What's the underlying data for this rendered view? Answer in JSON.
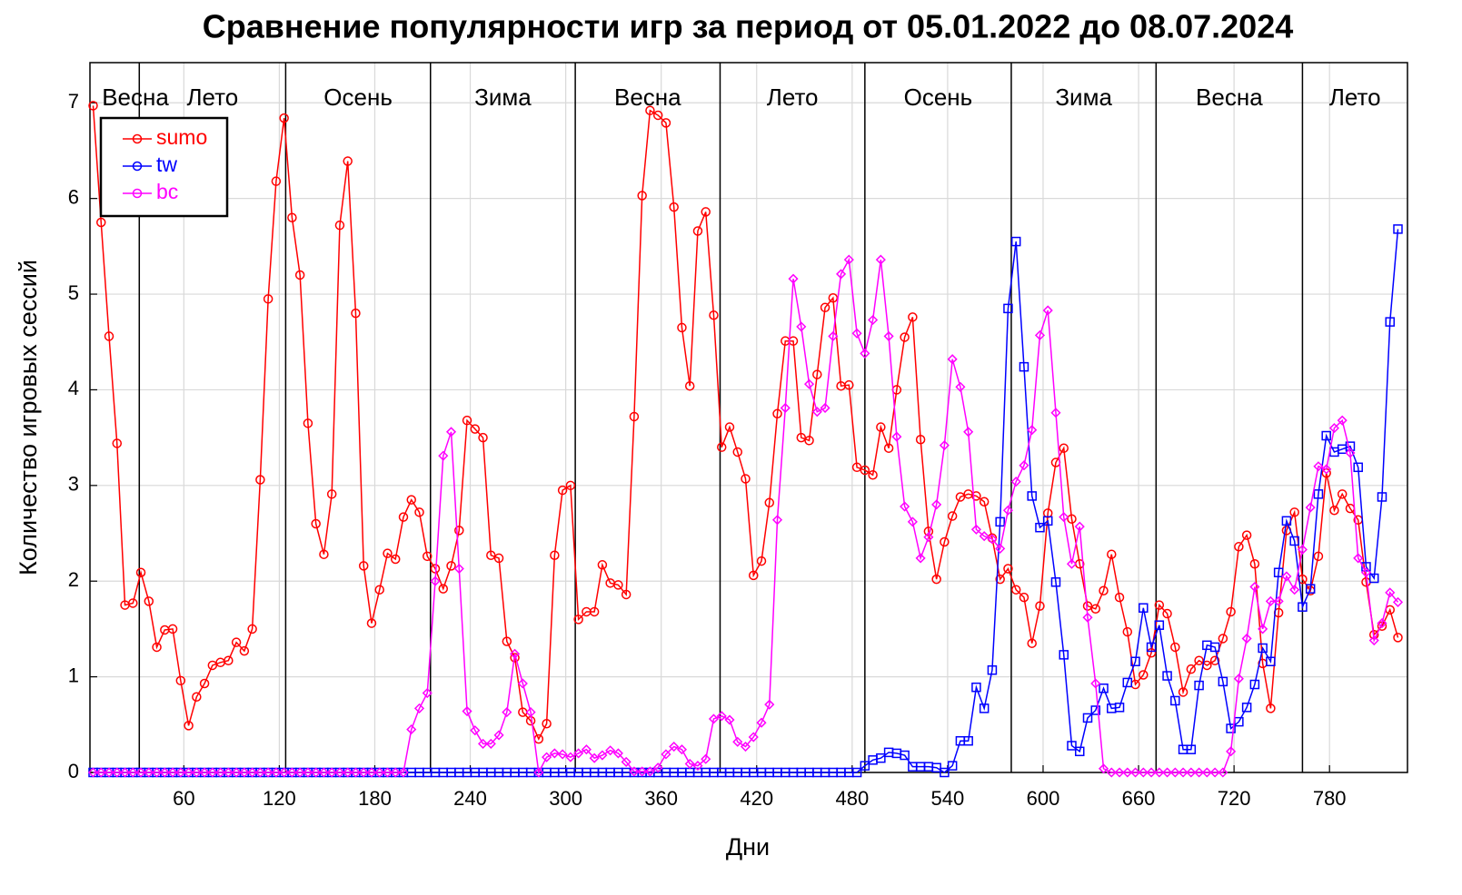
{
  "chart_data": {
    "type": "line",
    "title": "Сравнение популярности игр за период от 05.01.2022 до 08.07.2024",
    "x_label": "Дни",
    "y_label": "Количество игровых сессий",
    "xlim": [
      1,
      829
    ],
    "ylim": [
      0,
      7.42
    ],
    "xticks": [
      60,
      120,
      180,
      240,
      300,
      360,
      420,
      480,
      540,
      600,
      660,
      720,
      780
    ],
    "yticks": [
      0,
      1,
      2,
      3,
      4,
      5,
      6,
      7
    ],
    "grid": true,
    "legend": "upper left",
    "season_lines": [
      32,
      124,
      215,
      306,
      397,
      488,
      580,
      671,
      763
    ],
    "season_labels": [
      "Весна",
      "Лето",
      "Осень",
      "Зима",
      "Весна",
      "Лето",
      "Осень",
      "Зима",
      "Весна",
      "Лето"
    ],
    "x": [
      3,
      8,
      13,
      18,
      23,
      28,
      33,
      38,
      43,
      48,
      53,
      58,
      63,
      68,
      73,
      78,
      83,
      88,
      93,
      98,
      103,
      108,
      113,
      118,
      123,
      128,
      133,
      138,
      143,
      148,
      153,
      158,
      163,
      168,
      173,
      178,
      183,
      188,
      193,
      198,
      203,
      208,
      213,
      218,
      223,
      228,
      233,
      238,
      243,
      248,
      253,
      258,
      263,
      268,
      273,
      278,
      283,
      288,
      293,
      298,
      303,
      308,
      313,
      318,
      323,
      328,
      333,
      338,
      343,
      348,
      353,
      358,
      363,
      368,
      373,
      378,
      383,
      388,
      393,
      398,
      403,
      408,
      413,
      418,
      423,
      428,
      433,
      438,
      443,
      448,
      453,
      458,
      463,
      468,
      473,
      478,
      483,
      488,
      493,
      498,
      503,
      508,
      513,
      518,
      523,
      528,
      533,
      538,
      543,
      548,
      553,
      558,
      563,
      568,
      573,
      578,
      583,
      588,
      593,
      598,
      603,
      608,
      613,
      618,
      623,
      628,
      633,
      638,
      643,
      648,
      653,
      658,
      663,
      668,
      673,
      678,
      683,
      688,
      693,
      698,
      703,
      708,
      713,
      718,
      723,
      728,
      733,
      738,
      743,
      748,
      753,
      758,
      763,
      768,
      773,
      778,
      783,
      788,
      793,
      798,
      803,
      808,
      813,
      818,
      823
    ],
    "series": [
      {
        "name": "sumo",
        "color": "#ff0000",
        "marker": "circle",
        "values": [
          6.97,
          5.75,
          4.56,
          3.44,
          1.75,
          1.77,
          2.09,
          1.79,
          1.31,
          1.49,
          1.5,
          0.96,
          0.49,
          0.79,
          0.93,
          1.12,
          1.15,
          1.17,
          1.36,
          1.27,
          1.5,
          3.06,
          4.95,
          6.18,
          6.84,
          5.8,
          5.2,
          3.65,
          2.6,
          2.28,
          2.91,
          5.72,
          6.39,
          4.8,
          2.16,
          1.56,
          1.91,
          2.29,
          2.23,
          2.67,
          2.85,
          2.72,
          2.26,
          2.13,
          1.92,
          2.16,
          2.53,
          3.68,
          3.59,
          3.5,
          2.27,
          2.24,
          1.37,
          1.2,
          0.63,
          0.54,
          0.35,
          0.51,
          2.27,
          2.95,
          3.0,
          1.6,
          1.68,
          1.68,
          2.17,
          1.98,
          1.96,
          1.86,
          3.72,
          6.03,
          6.92,
          6.87,
          6.79,
          5.91,
          4.65,
          4.04,
          5.66,
          5.86,
          4.78,
          3.4,
          3.61,
          3.35,
          3.07,
          2.06,
          2.21,
          2.82,
          3.75,
          4.51,
          4.51,
          3.5,
          3.47,
          4.16,
          4.86,
          4.96,
          4.04,
          4.05,
          3.19,
          3.16,
          3.11,
          3.61,
          3.39,
          4.0,
          4.55,
          4.76,
          3.48,
          2.52,
          2.02,
          2.41,
          2.68,
          2.88,
          2.91,
          2.89,
          2.83,
          2.45,
          2.02,
          2.13,
          1.91,
          1.83,
          1.35,
          1.74,
          2.71,
          3.24,
          3.39,
          2.65,
          2.18,
          1.74,
          1.71,
          1.9,
          2.28,
          1.83,
          1.47,
          0.92,
          1.02,
          1.25,
          1.75,
          1.66,
          1.31,
          0.84,
          1.08,
          1.17,
          1.12,
          1.17,
          1.4,
          1.68,
          2.36,
          2.48,
          2.18,
          1.14,
          0.67,
          1.67,
          2.53,
          2.72,
          2.02,
          1.9,
          2.26,
          3.13,
          2.74,
          2.91,
          2.76,
          2.64,
          1.99,
          1.44,
          1.53,
          1.7,
          1.41
        ]
      },
      {
        "name": "tw",
        "color": "#0000ff",
        "marker": "square",
        "values": [
          0,
          0,
          0,
          0,
          0,
          0,
          0,
          0,
          0,
          0,
          0,
          0,
          0,
          0,
          0,
          0,
          0,
          0,
          0,
          0,
          0,
          0,
          0,
          0,
          0,
          0,
          0,
          0,
          0,
          0,
          0,
          0,
          0,
          0,
          0,
          0,
          0,
          0,
          0,
          0,
          0,
          0,
          0,
          0,
          0,
          0,
          0,
          0,
          0,
          0,
          0,
          0,
          0,
          0,
          0,
          0,
          0,
          0,
          0,
          0,
          0,
          0,
          0,
          0,
          0,
          0,
          0,
          0,
          0,
          0,
          0,
          0,
          0,
          0,
          0,
          0,
          0,
          0,
          0,
          0,
          0,
          0,
          0,
          0,
          0,
          0,
          0,
          0,
          0,
          0,
          0,
          0,
          0,
          0,
          0,
          0,
          0,
          0.07,
          0.13,
          0.15,
          0.21,
          0.2,
          0.18,
          0.06,
          0.06,
          0.06,
          0.05,
          0,
          0.07,
          0.33,
          0.33,
          0.89,
          0.67,
          1.07,
          2.62,
          4.85,
          5.55,
          4.24,
          2.89,
          2.56,
          2.63,
          1.99,
          1.23,
          0.28,
          0.22,
          0.57,
          0.65,
          0.88,
          0.67,
          0.68,
          0.94,
          1.16,
          1.72,
          1.31,
          1.54,
          1.01,
          0.75,
          0.24,
          0.24,
          0.91,
          1.33,
          1.31,
          0.95,
          0.46,
          0.53,
          0.68,
          0.92,
          1.3,
          1.16,
          2.09,
          2.63,
          2.42,
          1.73,
          1.92,
          2.91,
          3.52,
          3.35,
          3.38,
          3.41,
          3.19,
          2.15,
          2.03,
          2.88,
          4.71,
          5.68
        ]
      },
      {
        "name": "bc",
        "color": "#ff00ff",
        "marker": "diamond",
        "values": [
          0,
          0,
          0,
          0,
          0,
          0,
          0,
          0,
          0,
          0,
          0,
          0,
          0,
          0,
          0,
          0,
          0,
          0,
          0,
          0,
          0,
          0,
          0,
          0,
          0,
          0,
          0,
          0,
          0,
          0,
          0,
          0,
          0,
          0,
          0,
          0,
          0,
          0,
          0,
          0,
          0.45,
          0.67,
          0.83,
          2.0,
          3.31,
          3.56,
          2.13,
          0.64,
          0.44,
          0.3,
          0.3,
          0.39,
          0.63,
          1.24,
          0.93,
          0.63,
          0,
          0.16,
          0.2,
          0.19,
          0.16,
          0.2,
          0.24,
          0.15,
          0.18,
          0.23,
          0.2,
          0.11,
          0.01,
          0.01,
          0.01,
          0.05,
          0.19,
          0.27,
          0.24,
          0.09,
          0.07,
          0.14,
          0.56,
          0.59,
          0.55,
          0.32,
          0.27,
          0.37,
          0.52,
          0.71,
          2.64,
          3.81,
          5.16,
          4.66,
          4.06,
          3.77,
          3.81,
          4.56,
          5.21,
          5.36,
          4.59,
          4.38,
          4.73,
          5.36,
          4.56,
          3.51,
          2.78,
          2.62,
          2.24,
          2.46,
          2.8,
          3.42,
          4.32,
          4.03,
          3.56,
          2.54,
          2.47,
          2.44,
          2.34,
          2.74,
          3.04,
          3.21,
          3.58,
          4.57,
          4.83,
          3.76,
          2.67,
          2.18,
          2.57,
          1.62,
          0.93,
          0.04,
          0,
          0,
          0,
          0,
          0,
          0,
          0,
          0,
          0,
          0,
          0,
          0,
          0,
          0,
          0,
          0.22,
          0.98,
          1.4,
          1.94,
          1.5,
          1.79,
          1.79,
          2.05,
          1.91,
          2.33,
          2.77,
          3.2,
          3.17,
          3.6,
          3.68,
          3.34,
          2.24,
          2.09,
          1.38,
          1.56,
          1.88,
          1.78
        ]
      }
    ]
  }
}
